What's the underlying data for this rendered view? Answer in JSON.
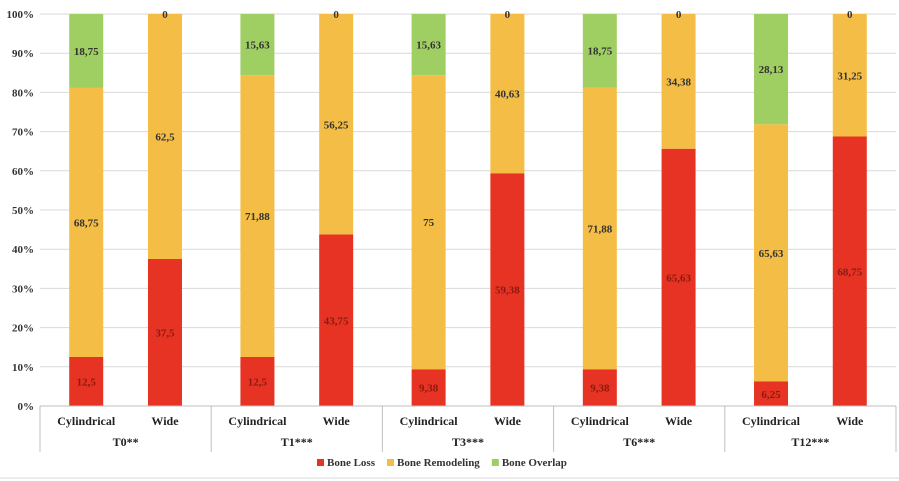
{
  "chart_data": {
    "type": "bar",
    "stacked": true,
    "percent": true,
    "title": "",
    "xlabel": "",
    "ylabel": "",
    "ylim": [
      0,
      100
    ],
    "y_ticks": [
      "0%",
      "10%",
      "20%",
      "30%",
      "40%",
      "50%",
      "60%",
      "70%",
      "80%",
      "90%",
      "100%"
    ],
    "groups": [
      {
        "name": "T0**",
        "categories": [
          "Cylindrical",
          "Wide"
        ]
      },
      {
        "name": "T1***",
        "categories": [
          "Cylindrical",
          "Wide"
        ]
      },
      {
        "name": "T3***",
        "categories": [
          "Cylindrical",
          "Wide"
        ]
      },
      {
        "name": "T6***",
        "categories": [
          "Cylindrical",
          "Wide"
        ]
      },
      {
        "name": "T12***",
        "categories": [
          "Cylindrical",
          "Wide"
        ]
      }
    ],
    "series": [
      {
        "name": "Bone Loss",
        "color": "#e63323",
        "label_color": "#8b1a12",
        "values": [
          12.5,
          37.5,
          12.5,
          43.75,
          9.38,
          59.38,
          9.38,
          65.63,
          6.25,
          68.75
        ],
        "labels": [
          "12,5",
          "37,5",
          "12,5",
          "43,75",
          "9,38",
          "59,38",
          "9,38",
          "65,63",
          "6,25",
          "68,75"
        ]
      },
      {
        "name": "Bone Remodeling",
        "color": "#f4bd45",
        "label_color": "#333333",
        "values": [
          68.75,
          62.5,
          71.88,
          56.25,
          75,
          40.63,
          71.88,
          34.38,
          65.63,
          31.25
        ],
        "labels": [
          "68,75",
          "62,5",
          "71,88",
          "56,25",
          "75",
          "40,63",
          "71,88",
          "34,38",
          "65,63",
          "31,25"
        ]
      },
      {
        "name": "Bone Overlap",
        "color": "#9fce63",
        "label_color": "#333333",
        "values": [
          18.75,
          0,
          15.63,
          0,
          15.63,
          0,
          18.75,
          0,
          28.13,
          0
        ],
        "labels": [
          "18,75",
          "0",
          "15,63",
          "0",
          "15,63",
          "0",
          "18,75",
          "0",
          "28,13",
          "0"
        ]
      }
    ],
    "legend": {
      "position": "bottom"
    },
    "grid": true
  }
}
